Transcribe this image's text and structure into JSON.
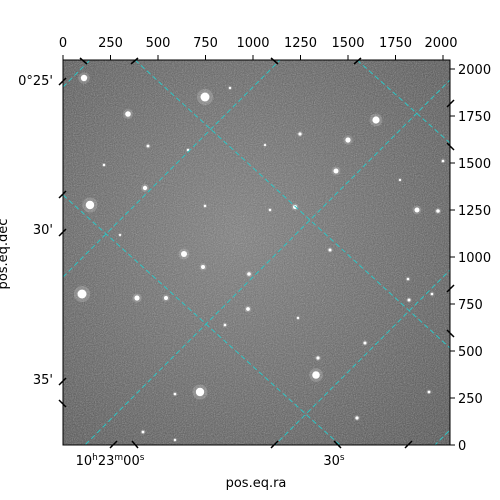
{
  "axes": {
    "ylabel": "pos.eq.dec",
    "xlabel": "pos.eq.ra",
    "top_ticks": [
      "0",
      "250",
      "500",
      "750",
      "1000",
      "1250",
      "1500",
      "1750",
      "2000"
    ],
    "right_ticks": [
      "0",
      "250",
      "500",
      "750",
      "1000",
      "1250",
      "1500",
      "1750",
      "2000"
    ],
    "dec_ticks": [
      "0°25'",
      "30'",
      "35'"
    ],
    "ra_ticks": [
      {
        "main": "10",
        "h": "h",
        "mid": "23",
        "m": "m",
        "tail": "00",
        "s": "s"
      },
      {
        "main": "30",
        "s": "s"
      }
    ]
  },
  "colors": {
    "grid": "#2ec4c4",
    "background": "#6b6b6b"
  }
}
